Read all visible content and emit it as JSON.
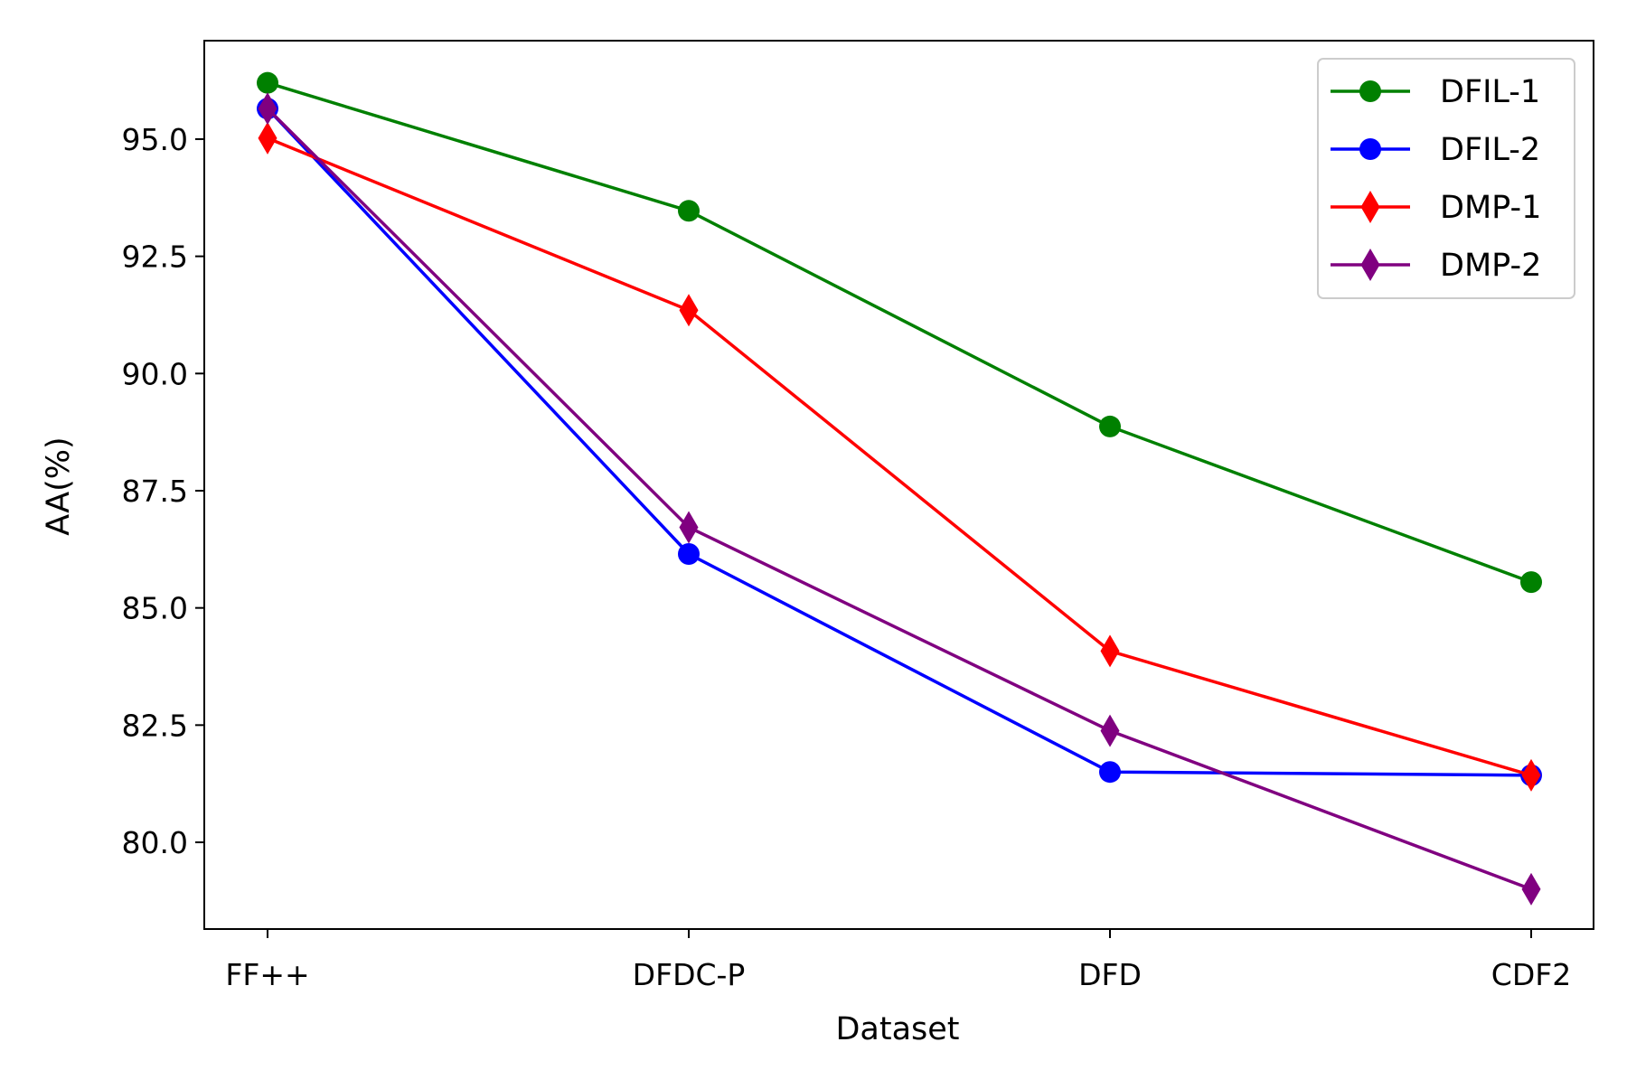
{
  "chart_data": {
    "type": "line",
    "title": "",
    "xlabel": "Dataset",
    "ylabel": "AA(%)",
    "categories": [
      "FF++",
      "DFDC-P",
      "DFD",
      "CDF2"
    ],
    "ylim": [
      78.15,
      97.1
    ],
    "yticks": [
      80.0,
      82.5,
      85.0,
      87.5,
      90.0,
      92.5,
      95.0
    ],
    "ytick_labels": [
      "80.0",
      "82.5",
      "85.0",
      "87.5",
      "90.0",
      "92.5",
      "95.0"
    ],
    "grid": false,
    "legend_position": "top-right",
    "series": [
      {
        "name": "DFIL-1",
        "color": "#008000",
        "marker": "circle",
        "values": [
          96.2,
          93.47,
          88.87,
          85.55
        ]
      },
      {
        "name": "DFIL-2",
        "color": "#0000ff",
        "marker": "circle",
        "values": [
          95.65,
          86.15,
          81.5,
          81.43
        ]
      },
      {
        "name": "DMP-1",
        "color": "#ff0000",
        "marker": "thin-diamond",
        "values": [
          95.02,
          91.35,
          84.08,
          81.43
        ]
      },
      {
        "name": "DMP-2",
        "color": "#800080",
        "marker": "thin-diamond",
        "values": [
          95.65,
          86.72,
          82.38,
          79.0
        ]
      }
    ]
  }
}
